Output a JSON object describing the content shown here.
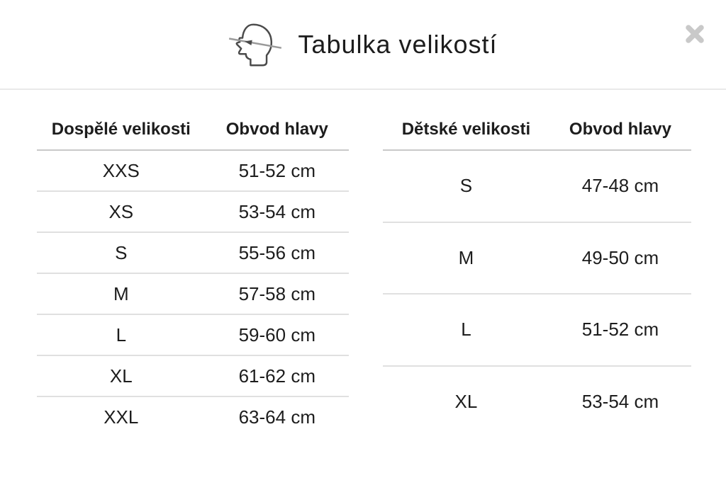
{
  "modal": {
    "title": "Tabulka velikostí",
    "icons": {
      "head": "head-circumference-icon",
      "close": "close-icon"
    }
  },
  "tables": [
    {
      "name": "adult-sizes",
      "headers": [
        "Dospělé velikosti",
        "Obvod hlavy"
      ],
      "rows": [
        [
          "XXS",
          "51-52 cm"
        ],
        [
          "XS",
          "53-54 cm"
        ],
        [
          "S",
          "55-56 cm"
        ],
        [
          "M",
          "57-58 cm"
        ],
        [
          "L",
          "59-60 cm"
        ],
        [
          "XL",
          "61-62 cm"
        ],
        [
          "XXL",
          "63-64 cm"
        ]
      ]
    },
    {
      "name": "kids-sizes",
      "headers": [
        "Dětské velikosti",
        "Obvod hlavy"
      ],
      "rows": [
        [
          "S",
          "47-48 cm"
        ],
        [
          "M",
          "49-50 cm"
        ],
        [
          "L",
          "51-52 cm"
        ],
        [
          "XL",
          "53-54 cm"
        ]
      ]
    }
  ],
  "colors": {
    "text": "#1d1d1d",
    "divider": "#e9e9e9",
    "header_line": "#c9c9c9",
    "row_line": "#e0e0e0",
    "close": "#c9c9c9",
    "icon_outline": "#4a4a4a",
    "icon_line": "#9a9a9a"
  }
}
